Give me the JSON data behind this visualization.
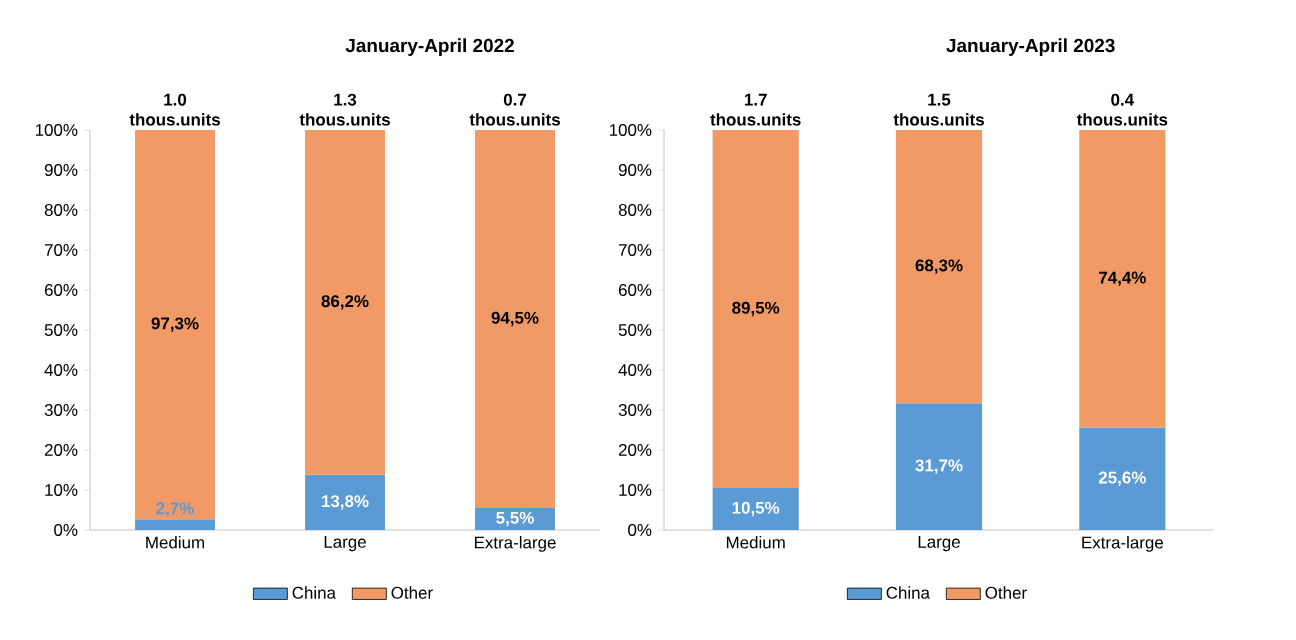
{
  "chart_data": [
    {
      "type": "bar",
      "stacked": true,
      "title": "January-April 2022",
      "categories": [
        "Medium",
        "Large",
        "Extra-large"
      ],
      "series": [
        {
          "name": "China",
          "color": "#5b9bd5",
          "values": [
            2.7,
            13.8,
            5.5
          ],
          "value_labels": [
            "2,7%",
            "13,8%",
            "5,5%"
          ]
        },
        {
          "name": "Other",
          "color": "#f19a66",
          "values": [
            97.3,
            86.2,
            94.5
          ],
          "value_labels": [
            "97,3%",
            "86,2%",
            "94,5%"
          ]
        }
      ],
      "annotations": [
        {
          "text": "1.0 thous.units",
          "x": "Medium",
          "y": 100
        },
        {
          "text": "1.3 thous.units",
          "x": "Large",
          "y": 100
        },
        {
          "text": "0.7 thous.units",
          "x": "Extra-large",
          "y": 100
        }
      ],
      "ylim": [
        0,
        100
      ],
      "yticks": [
        {
          "value": 0,
          "label": "0%"
        },
        {
          "value": 10,
          "label": "10%"
        },
        {
          "value": 20,
          "label": "20%"
        },
        {
          "value": 30,
          "label": "30%"
        },
        {
          "value": 40,
          "label": "40%"
        },
        {
          "value": 50,
          "label": "50%"
        },
        {
          "value": 60,
          "label": "60%"
        },
        {
          "value": 70,
          "label": "70%"
        },
        {
          "value": 80,
          "label": "80%"
        },
        {
          "value": 90,
          "label": "90%"
        },
        {
          "value": 100,
          "label": "100%"
        }
      ],
      "legend": "bottom",
      "grid": false
    },
    {
      "type": "bar",
      "stacked": true,
      "title": "January-April 2023",
      "categories": [
        "Medium",
        "Large",
        "Extra-large"
      ],
      "series": [
        {
          "name": "China",
          "color": "#5b9bd5",
          "values": [
            10.5,
            31.7,
            25.6
          ],
          "value_labels": [
            "10,5%",
            "31,7%",
            "25,6%"
          ]
        },
        {
          "name": "Other",
          "color": "#f19a66",
          "values": [
            89.5,
            68.3,
            74.4
          ],
          "value_labels": [
            "89,5%",
            "68,3%",
            "74,4%"
          ]
        }
      ],
      "annotations": [
        {
          "text": "1.7 thous.units",
          "x": "Medium",
          "y": 100
        },
        {
          "text": "1.5 thous.units",
          "x": "Large",
          "y": 100
        },
        {
          "text": "0.4 thous.units",
          "x": "Extra-large",
          "y": 100
        }
      ],
      "ylim": [
        0,
        100
      ],
      "yticks": [
        {
          "value": 0,
          "label": "0%"
        },
        {
          "value": 10,
          "label": "10%"
        },
        {
          "value": 20,
          "label": "20%"
        },
        {
          "value": 30,
          "label": "30%"
        },
        {
          "value": 40,
          "label": "40%"
        },
        {
          "value": 50,
          "label": "50%"
        },
        {
          "value": 60,
          "label": "60%"
        },
        {
          "value": 70,
          "label": "70%"
        },
        {
          "value": 80,
          "label": "80%"
        },
        {
          "value": 90,
          "label": "90%"
        },
        {
          "value": 100,
          "label": "100%"
        }
      ],
      "legend": "bottom",
      "grid": false
    }
  ]
}
